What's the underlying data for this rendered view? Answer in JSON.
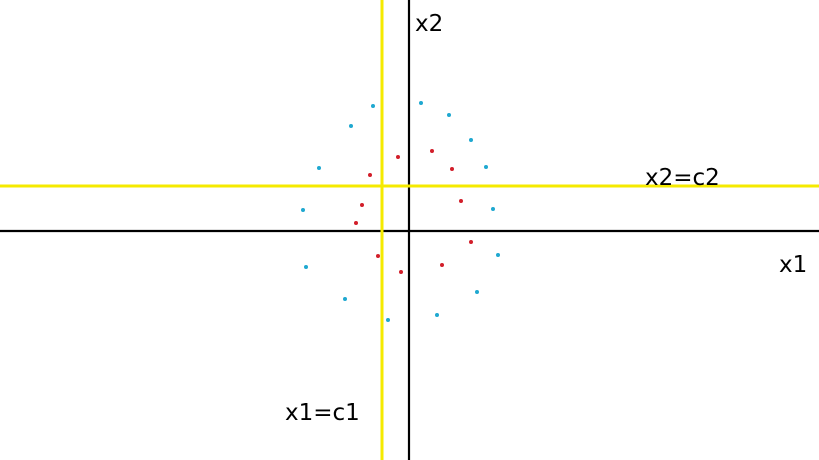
{
  "labels": {
    "x1_axis": "x1",
    "x2_axis": "x2",
    "vertical_threshold": "x1=c1",
    "horizontal_threshold": "x2=c2"
  },
  "colors": {
    "axis": "#000000",
    "threshold_line": "#f5ea00",
    "blue_points": "#1fa8d0",
    "red_points": "#d21e2a"
  },
  "blue_points": [
    [
      373,
      106
    ],
    [
      421,
      103
    ],
    [
      449,
      115
    ],
    [
      351,
      126
    ],
    [
      471,
      140
    ],
    [
      319,
      168
    ],
    [
      486,
      167
    ],
    [
      303,
      210
    ],
    [
      493,
      209
    ],
    [
      306,
      267
    ],
    [
      498,
      255
    ],
    [
      345,
      299
    ],
    [
      477,
      292
    ],
    [
      388,
      320
    ],
    [
      437,
      315
    ]
  ],
  "red_points": [
    [
      398,
      157
    ],
    [
      432,
      151
    ],
    [
      370,
      175
    ],
    [
      452,
      169
    ],
    [
      362,
      205
    ],
    [
      461,
      201
    ],
    [
      356,
      223
    ],
    [
      471,
      242
    ],
    [
      378,
      256
    ],
    [
      442,
      265
    ],
    [
      401,
      272
    ]
  ]
}
